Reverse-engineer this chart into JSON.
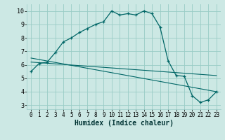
{
  "title": "",
  "xlabel": "Humidex (Indice chaleur)",
  "bg_color": "#cce8e4",
  "grid_color": "#99ccc6",
  "line_color": "#006666",
  "xlim": [
    -0.5,
    23.5
  ],
  "ylim": [
    2.7,
    10.5
  ],
  "xticks": [
    0,
    1,
    2,
    3,
    4,
    5,
    6,
    7,
    8,
    9,
    10,
    11,
    12,
    13,
    14,
    15,
    16,
    17,
    18,
    19,
    20,
    21,
    22,
    23
  ],
  "yticks": [
    3,
    4,
    5,
    6,
    7,
    8,
    9,
    10
  ],
  "main_x": [
    0,
    1,
    2,
    3,
    4,
    5,
    6,
    7,
    8,
    9,
    10,
    11,
    12,
    13,
    14,
    15,
    16,
    17,
    18,
    19,
    20,
    21,
    22,
    23
  ],
  "main_y": [
    5.5,
    6.1,
    6.2,
    6.9,
    7.7,
    8.0,
    8.4,
    8.7,
    9.0,
    9.2,
    10.0,
    9.7,
    9.8,
    9.7,
    10.0,
    9.8,
    8.8,
    6.3,
    5.2,
    5.15,
    3.7,
    3.2,
    3.4,
    4.0
  ],
  "line2_x": [
    0,
    23
  ],
  "line2_y": [
    6.2,
    5.2
  ],
  "line3_x": [
    0,
    23
  ],
  "line3_y": [
    6.5,
    4.0
  ],
  "xlabel_fontsize": 7,
  "tick_fontsize": 5.5
}
